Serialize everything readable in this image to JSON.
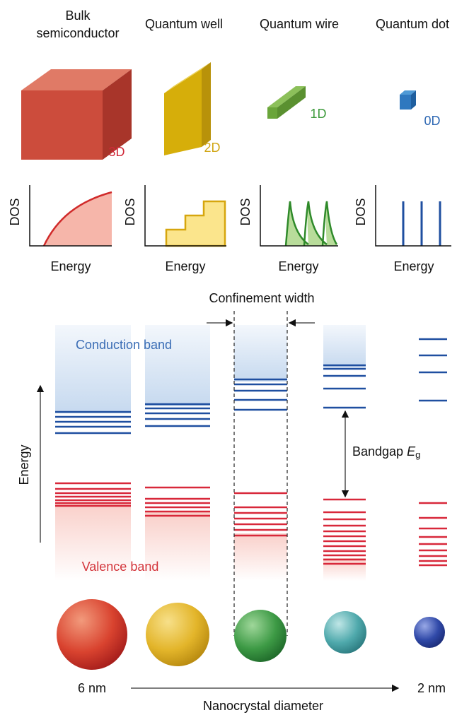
{
  "columns": [
    {
      "title": "Bulk semiconductor",
      "dimension": "3D",
      "dos_label": "DOS",
      "energy_label": "Energy"
    },
    {
      "title": "Quantum well",
      "dimension": "2D",
      "dos_label": "DOS",
      "energy_label": "Energy"
    },
    {
      "title": "Quantum wire",
      "dimension": "1D",
      "dos_label": "DOS",
      "energy_label": "Energy"
    },
    {
      "title": "Quantum dot",
      "dimension": "0D",
      "dos_label": "DOS",
      "energy_label": "Energy"
    }
  ],
  "band_diagram": {
    "confinement_label": "Confinement width",
    "conduction_label": "Conduction band",
    "valence_label": "Valence band",
    "energy_axis_label": "Energy",
    "bandgap": {
      "text": "Bandgap",
      "symbol": "E",
      "subscript": "g"
    }
  },
  "size_axis": {
    "start": "6 nm",
    "end": "2 nm",
    "label": "Nanocrystal diameter"
  }
}
